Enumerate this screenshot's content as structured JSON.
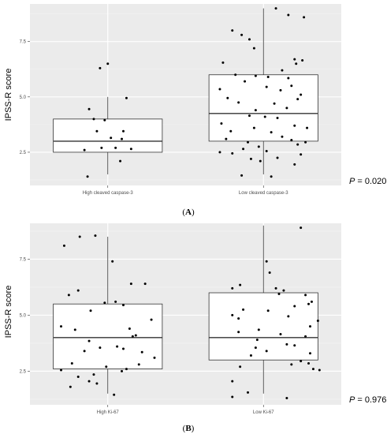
{
  "chart_data": [
    {
      "type": "box",
      "panel_label": "A",
      "ylabel": "IPSS-R score",
      "ylim": [
        1.0,
        9.2
      ],
      "yticks": [
        2.5,
        5.0,
        7.5
      ],
      "ytick_labels": [
        "2.5",
        "5.0",
        "7.5"
      ],
      "categories": [
        "High cleaved caspase-3",
        "Low cleaved caspase-3"
      ],
      "p_value_label": "P",
      "p_value_text": " = 0.020",
      "grid": true,
      "boxes": [
        {
          "q1": 2.5,
          "median": 3.0,
          "q3": 4.0,
          "whisker_low": 1.5,
          "whisker_high": 5.0
        },
        {
          "q1": 3.0,
          "median": 4.25,
          "q3": 6.0,
          "whisker_low": 1.5,
          "whisker_high": 9.0
        }
      ],
      "points": [
        [
          [
            -0.05,
            6.3
          ],
          [
            0.0,
            6.5
          ],
          [
            0.12,
            4.95
          ],
          [
            -0.12,
            4.45
          ],
          [
            -0.09,
            4.0
          ],
          [
            -0.02,
            3.95
          ],
          [
            0.1,
            3.45
          ],
          [
            -0.07,
            3.45
          ],
          [
            0.02,
            3.15
          ],
          [
            0.09,
            3.1
          ],
          [
            -0.04,
            2.7
          ],
          [
            0.05,
            2.7
          ],
          [
            0.15,
            2.65
          ],
          [
            -0.15,
            2.6
          ],
          [
            0.08,
            2.1
          ],
          [
            -0.13,
            1.4
          ]
        ],
        [
          [
            0.08,
            9.0
          ],
          [
            0.16,
            8.7
          ],
          [
            0.26,
            8.6
          ],
          [
            -0.2,
            8.0
          ],
          [
            -0.14,
            7.8
          ],
          [
            -0.09,
            7.6
          ],
          [
            -0.06,
            7.2
          ],
          [
            0.2,
            6.7
          ],
          [
            0.25,
            6.65
          ],
          [
            -0.26,
            6.55
          ],
          [
            0.21,
            6.5
          ],
          [
            0.12,
            6.2
          ],
          [
            -0.18,
            6.0
          ],
          [
            -0.05,
            5.95
          ],
          [
            0.03,
            5.9
          ],
          [
            0.16,
            5.85
          ],
          [
            -0.12,
            5.7
          ],
          [
            0.18,
            5.5
          ],
          [
            0.02,
            5.45
          ],
          [
            -0.28,
            5.35
          ],
          [
            0.11,
            5.3
          ],
          [
            0.24,
            5.1
          ],
          [
            -0.23,
            4.95
          ],
          [
            0.22,
            4.9
          ],
          [
            -0.16,
            4.75
          ],
          [
            0.07,
            4.7
          ],
          [
            0.15,
            4.5
          ],
          [
            -0.05,
            4.4
          ],
          [
            -0.09,
            4.15
          ],
          [
            0.01,
            4.1
          ],
          [
            0.09,
            4.05
          ],
          [
            -0.27,
            3.8
          ],
          [
            0.2,
            3.7
          ],
          [
            0.28,
            3.6
          ],
          [
            -0.06,
            3.6
          ],
          [
            -0.21,
            3.45
          ],
          [
            0.05,
            3.4
          ],
          [
            0.12,
            3.2
          ],
          [
            -0.24,
            3.1
          ],
          [
            0.18,
            3.05
          ],
          [
            0.27,
            2.95
          ],
          [
            -0.1,
            2.95
          ],
          [
            0.22,
            2.85
          ],
          [
            -0.03,
            2.75
          ],
          [
            -0.13,
            2.65
          ],
          [
            0.02,
            2.55
          ],
          [
            -0.28,
            2.5
          ],
          [
            -0.2,
            2.45
          ],
          [
            0.24,
            2.4
          ],
          [
            0.09,
            2.25
          ],
          [
            -0.08,
            2.2
          ],
          [
            -0.02,
            2.1
          ],
          [
            0.2,
            1.95
          ],
          [
            -0.14,
            1.45
          ],
          [
            0.05,
            1.4
          ]
        ]
      ]
    },
    {
      "type": "box",
      "panel_label": "B",
      "ylabel": "IPSS-R score",
      "ylim": [
        1.0,
        9.1
      ],
      "yticks": [
        2.5,
        5.0,
        7.5
      ],
      "ytick_labels": [
        "2.5",
        "5.0",
        "7.5"
      ],
      "categories": [
        "High Ki-67",
        "Low Ki-67"
      ],
      "p_value_label": "P",
      "p_value_text": " = 0.976",
      "grid": true,
      "boxes": [
        {
          "q1": 2.6,
          "median": 4.0,
          "q3": 5.5,
          "whisker_low": 1.5,
          "whisker_high": 8.5
        },
        {
          "q1": 3.0,
          "median": 4.0,
          "q3": 6.0,
          "whisker_low": 1.5,
          "whisker_high": 9.0
        }
      ],
      "points": [
        [
          [
            -0.28,
            8.1
          ],
          [
            -0.18,
            8.5
          ],
          [
            -0.08,
            8.55
          ],
          [
            0.03,
            7.4
          ],
          [
            -0.19,
            6.1
          ],
          [
            -0.25,
            5.9
          ],
          [
            0.15,
            6.4
          ],
          [
            0.24,
            6.4
          ],
          [
            0.05,
            5.6
          ],
          [
            -0.02,
            5.55
          ],
          [
            0.1,
            5.45
          ],
          [
            -0.11,
            5.2
          ],
          [
            0.28,
            4.8
          ],
          [
            -0.3,
            4.5
          ],
          [
            0.14,
            4.4
          ],
          [
            -0.21,
            4.35
          ],
          [
            0.16,
            4.05
          ],
          [
            0.18,
            4.1
          ],
          [
            -0.12,
            3.85
          ],
          [
            0.06,
            3.6
          ],
          [
            -0.05,
            3.55
          ],
          [
            0.1,
            3.5
          ],
          [
            0.22,
            3.35
          ],
          [
            -0.15,
            3.4
          ],
          [
            0.3,
            3.1
          ],
          [
            -0.23,
            2.85
          ],
          [
            0.2,
            2.8
          ],
          [
            -0.01,
            2.7
          ],
          [
            0.12,
            2.6
          ],
          [
            -0.3,
            2.55
          ],
          [
            0.09,
            2.5
          ],
          [
            -0.09,
            2.35
          ],
          [
            -0.19,
            2.25
          ],
          [
            -0.12,
            2.05
          ],
          [
            -0.07,
            1.95
          ],
          [
            -0.24,
            1.8
          ],
          [
            0.04,
            1.45
          ]
        ],
        [
          [
            0.24,
            8.9
          ],
          [
            0.02,
            7.4
          ],
          [
            0.04,
            6.9
          ],
          [
            -0.2,
            6.2
          ],
          [
            -0.15,
            6.35
          ],
          [
            0.08,
            6.2
          ],
          [
            0.13,
            6.1
          ],
          [
            0.1,
            5.95
          ],
          [
            0.27,
            5.9
          ],
          [
            0.29,
            5.5
          ],
          [
            0.31,
            5.6
          ],
          [
            0.2,
            5.4
          ],
          [
            -0.13,
            5.25
          ],
          [
            0.03,
            5.2
          ],
          [
            -0.2,
            5.0
          ],
          [
            0.16,
            4.95
          ],
          [
            -0.16,
            4.85
          ],
          [
            0.35,
            4.75
          ],
          [
            0.3,
            4.5
          ],
          [
            0.11,
            4.15
          ],
          [
            -0.03,
            4.35
          ],
          [
            -0.16,
            4.25
          ],
          [
            0.27,
            4.05
          ],
          [
            -0.04,
            3.9
          ],
          [
            0.15,
            3.7
          ],
          [
            0.2,
            3.65
          ],
          [
            -0.05,
            3.55
          ],
          [
            0.02,
            3.4
          ],
          [
            0.3,
            3.3
          ],
          [
            -0.08,
            3.2
          ],
          [
            0.24,
            2.95
          ],
          [
            0.29,
            2.85
          ],
          [
            0.18,
            2.8
          ],
          [
            -0.15,
            2.7
          ],
          [
            0.32,
            2.6
          ],
          [
            0.36,
            2.55
          ],
          [
            -0.2,
            2.05
          ],
          [
            -0.1,
            1.55
          ],
          [
            -0.2,
            1.35
          ],
          [
            0.15,
            1.3
          ]
        ]
      ]
    }
  ]
}
